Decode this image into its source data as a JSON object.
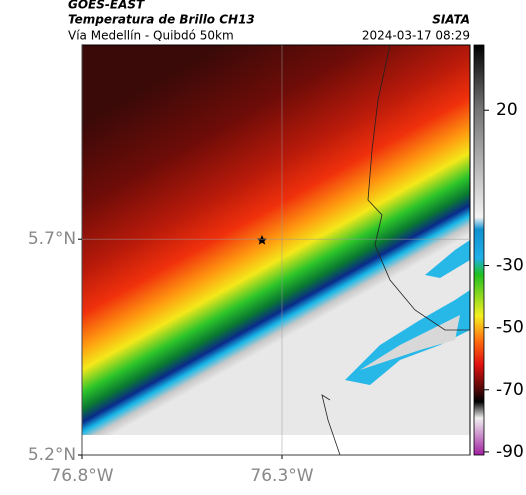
{
  "header": {
    "title": "GOES-EAST",
    "subtitle": "Temperatura de Brillo CH13",
    "location": "Vía Medellín - Quibdó 50km",
    "source": "SIATA",
    "timestamp": "2024-03-17 08:29"
  },
  "map": {
    "lon_range": [
      -76.8,
      -75.83
    ],
    "lat_range": [
      5.2,
      6.15
    ],
    "lon_ticks": [
      {
        "value": -76.8,
        "label": "76.8°W"
      },
      {
        "value": -76.3,
        "label": "76.3°W"
      }
    ],
    "lat_ticks": [
      {
        "value": 5.7,
        "label": "5.7°N"
      },
      {
        "value": 5.2,
        "label": "5.2°N"
      }
    ]
  },
  "colorbar": {
    "range": [
      -91,
      41
    ],
    "ticks": [
      20,
      -30,
      -50,
      -70,
      -90
    ]
  }
}
